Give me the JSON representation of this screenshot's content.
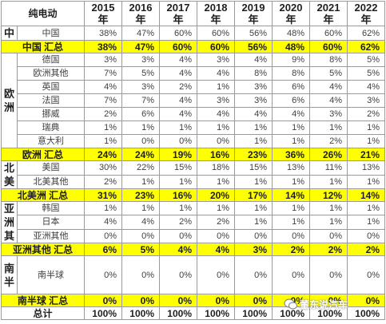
{
  "header": {
    "title": "纯电动",
    "years": [
      "2015\n年",
      "2016\n年",
      "2017\n年",
      "2018\n年",
      "2019\n年",
      "2020\n年",
      "2021\n年",
      "2022\n年"
    ]
  },
  "rows": [
    {
      "type": "detail",
      "region": "中",
      "sub": "中国",
      "values": [
        "38%",
        "47%",
        "60%",
        "60%",
        "56%",
        "48%",
        "60%",
        "62%"
      ]
    },
    {
      "type": "sum",
      "label": "中国 汇总",
      "values": [
        "38%",
        "47%",
        "60%",
        "60%",
        "56%",
        "48%",
        "60%",
        "62%"
      ]
    },
    {
      "type": "detail",
      "region": "欧\n洲",
      "sub": "德国",
      "values": [
        "3%",
        "3%",
        "4%",
        "3%",
        "4%",
        "9%",
        "8%",
        "5%"
      ]
    },
    {
      "type": "detail",
      "sub": "欧洲其他",
      "values": [
        "7%",
        "5%",
        "4%",
        "4%",
        "8%",
        "8%",
        "5%",
        "5%"
      ]
    },
    {
      "type": "detail",
      "sub": "英国",
      "values": [
        "4%",
        "3%",
        "2%",
        "1%",
        "3%",
        "6%",
        "4%",
        "4%"
      ]
    },
    {
      "type": "detail",
      "sub": "法国",
      "values": [
        "7%",
        "7%",
        "4%",
        "3%",
        "3%",
        "6%",
        "4%",
        "3%"
      ]
    },
    {
      "type": "detail",
      "sub": "挪威",
      "values": [
        "2%",
        "6%",
        "4%",
        "4%",
        "4%",
        "4%",
        "3%",
        "2%"
      ]
    },
    {
      "type": "detail",
      "sub": "瑞典",
      "values": [
        "1%",
        "1%",
        "1%",
        "1%",
        "1%",
        "1%",
        "1%",
        "1%"
      ]
    },
    {
      "type": "detail",
      "sub": "意大利",
      "values": [
        "1%",
        "0%",
        "0%",
        "0%",
        "1%",
        "1%",
        "2%",
        "1%"
      ]
    },
    {
      "type": "sum",
      "label": "欧洲 汇总",
      "values": [
        "24%",
        "24%",
        "19%",
        "16%",
        "23%",
        "36%",
        "26%",
        "21%"
      ]
    },
    {
      "type": "detail",
      "region": "北\n美",
      "sub": "美国",
      "values": [
        "30%",
        "22%",
        "15%",
        "18%",
        "15%",
        "13%",
        "11%",
        "13%"
      ]
    },
    {
      "type": "detail",
      "sub": "北美其他",
      "values": [
        "2%",
        "1%",
        "1%",
        "1%",
        "1%",
        "1%",
        "1%",
        "1%"
      ]
    },
    {
      "type": "sum",
      "label": "北美洲 汇总",
      "values": [
        "31%",
        "23%",
        "16%",
        "20%",
        "17%",
        "14%",
        "12%",
        "14%"
      ]
    },
    {
      "type": "detail",
      "region": "亚\n洲\n其",
      "sub": "韩国",
      "values": [
        "1%",
        "1%",
        "1%",
        "1%",
        "1%",
        "1%",
        "1%",
        "1%"
      ]
    },
    {
      "type": "detail",
      "sub": "日本",
      "values": [
        "4%",
        "4%",
        "2%",
        "2%",
        "1%",
        "1%",
        "1%",
        "1%"
      ]
    },
    {
      "type": "detail",
      "sub": "亚洲其他",
      "values": [
        "0%",
        "0%",
        "0%",
        "0%",
        "0%",
        "0%",
        "0%",
        "0%"
      ]
    },
    {
      "type": "sum",
      "label": "亚洲其他 汇总",
      "values": [
        "6%",
        "5%",
        "4%",
        "4%",
        "3%",
        "2%",
        "2%",
        "2%"
      ]
    },
    {
      "type": "detail",
      "region": "南\n半",
      "sub": "南半球",
      "values": [
        "0%",
        "0%",
        "0%",
        "0%",
        "0%",
        "0%",
        "0%",
        "0%"
      ]
    },
    {
      "type": "sum",
      "label": "南半球 汇总",
      "values": [
        "0%",
        "0%",
        "0%",
        "0%",
        "0%",
        "0%",
        "0%",
        "0%"
      ]
    },
    {
      "type": "total",
      "label": "总计",
      "values": [
        "100%",
        "100%",
        "100%",
        "100%",
        "100%",
        "100%",
        "100%",
        "100%"
      ]
    }
  ],
  "watermark": "董东说汽车"
}
